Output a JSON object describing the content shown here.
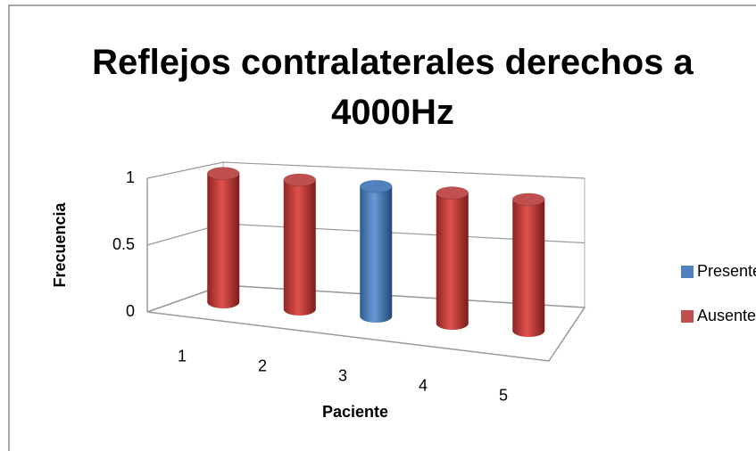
{
  "chart_data": {
    "type": "bar3d",
    "title": "Reflejos contralaterales derechos a 4000Hz",
    "xlabel": "Paciente",
    "ylabel": "Frecuencia",
    "categories": [
      "1",
      "2",
      "3",
      "4",
      "5"
    ],
    "series": [
      {
        "name": "Presentes",
        "color": "#4f81bd",
        "values": [
          0,
          0,
          1,
          0,
          0
        ]
      },
      {
        "name": "Ausentes",
        "color": "#c0504d",
        "values": [
          1,
          1,
          0,
          1,
          1
        ]
      }
    ],
    "ylim": [
      0,
      1
    ],
    "yticks": [
      0,
      0.5,
      1
    ],
    "grid": true,
    "legend": "right"
  }
}
